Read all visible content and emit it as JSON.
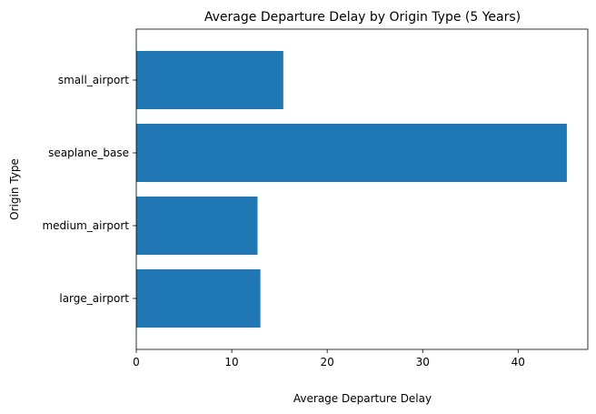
{
  "chart_data": {
    "type": "bar",
    "orientation": "horizontal",
    "title": "Average Departure Delay by Origin Type (5 Years)",
    "xlabel": "Average Departure Delay",
    "ylabel": "Origin Type",
    "categories": [
      "large_airport",
      "medium_airport",
      "seaplane_base",
      "small_airport"
    ],
    "values": [
      13.0,
      12.7,
      45.1,
      15.4
    ],
    "xlim": [
      0,
      47.3
    ],
    "xticks": [
      0,
      10,
      20,
      30,
      40
    ],
    "bar_color": "#1f77b4",
    "grid": false,
    "legend": "none"
  }
}
